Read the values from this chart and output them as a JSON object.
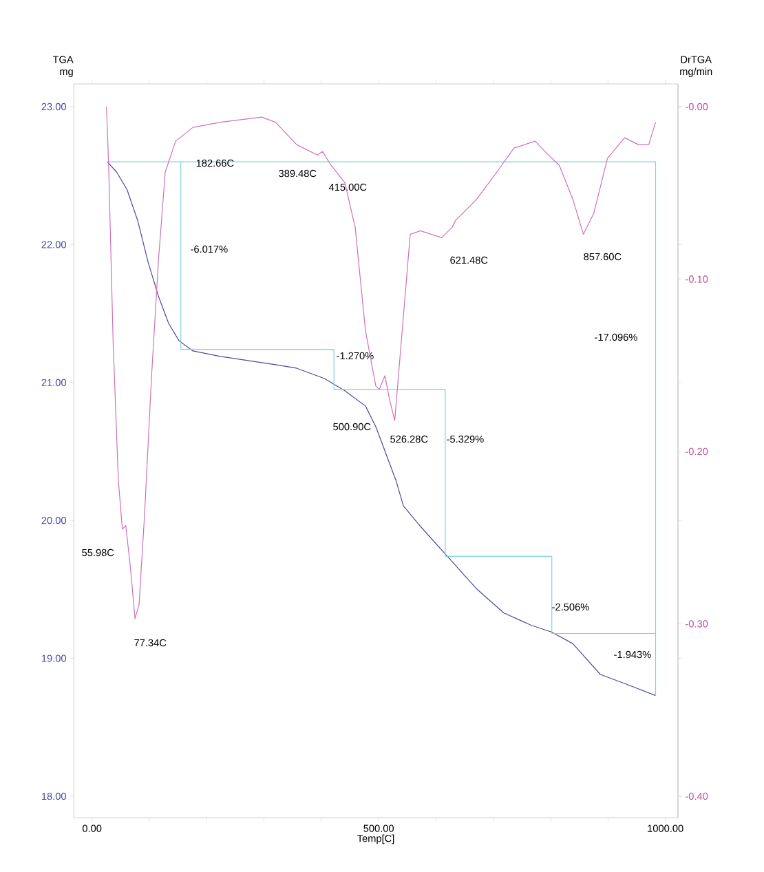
{
  "chart_data": {
    "type": "line",
    "xlabel": "Temp[C]",
    "ylabel": "TGA mg",
    "y2label": "DrTGA mg/min",
    "xlim": [
      -32,
      1022
    ],
    "ylim": [
      17.845,
      23.165
    ],
    "y2lim": [
      -0.4124,
      0.0132
    ],
    "xticks": [
      {
        "value": 0,
        "label": "0.00"
      },
      {
        "value": 100,
        "label": null
      },
      {
        "value": 200,
        "label": null
      },
      {
        "value": 300,
        "label": null
      },
      {
        "value": 400,
        "label": null
      },
      {
        "value": 500,
        "label": "500.00"
      },
      {
        "value": 600,
        "label": null
      },
      {
        "value": 700,
        "label": null
      },
      {
        "value": 800,
        "label": null
      },
      {
        "value": 900,
        "label": null
      },
      {
        "value": 1000,
        "label": "1000.00"
      }
    ],
    "yticks": [
      {
        "value": 18,
        "label": "18.00"
      },
      {
        "value": 19,
        "label": "19.00"
      },
      {
        "value": 20,
        "label": "20.00"
      },
      {
        "value": 21,
        "label": "21.00"
      },
      {
        "value": 22,
        "label": "22.00"
      },
      {
        "value": 23,
        "label": "23.00"
      }
    ],
    "y2ticks": [
      {
        "value": 0,
        "label": "-0.00"
      },
      {
        "value": -0.1,
        "label": "-0.10"
      },
      {
        "value": -0.2,
        "label": "-0.20"
      },
      {
        "value": -0.3,
        "label": "-0.30"
      },
      {
        "value": -0.4,
        "label": "-0.40"
      }
    ],
    "grid": false,
    "series": [
      {
        "color": "#4a4a9a",
        "x": [
          26.5,
          43,
          61,
          79.5,
          97.6,
          115.7,
          133.7,
          151.8,
          176,
          224,
          320,
          356.6,
          404.8,
          441,
          477,
          495,
          513,
          531,
          543,
          573,
          622,
          670,
          718,
          766,
          802,
          838.5,
          886.7,
          934.9,
          983
        ],
        "values": [
          22.6,
          22.526,
          22.4,
          22.177,
          21.877,
          21.628,
          21.428,
          21.303,
          21.229,
          21.189,
          21.129,
          21.104,
          21.03,
          20.94,
          20.83,
          20.68,
          20.48,
          20.28,
          20.106,
          19.956,
          19.73,
          19.507,
          19.33,
          19.24,
          19.19,
          19.107,
          18.883,
          18.808,
          18.73
        ]
      },
      {
        "color": "#d070b8",
        "axis": "y2",
        "x": [
          25.3,
          29,
          37,
          46,
          53,
          59,
          67.5,
          75,
          82,
          91.6,
          103.6,
          115.7,
          127.7,
          145.8,
          176,
          224,
          296,
          320,
          357,
          393,
          402,
          417,
          441,
          459,
          477,
          495,
          501,
          511,
          519,
          528,
          537,
          555,
          573,
          610,
          628,
          634,
          670,
          706,
          736,
          773,
          790,
          815,
          839,
          857,
          875,
          899,
          929,
          953,
          971,
          983
        ],
        "values": [
          0.0,
          -0.034,
          -0.138,
          -0.217,
          -0.245,
          -0.243,
          -0.269,
          -0.297,
          -0.289,
          -0.237,
          -0.158,
          -0.09,
          -0.038,
          -0.02,
          -0.012,
          -0.009,
          -0.006,
          -0.009,
          -0.022,
          -0.028,
          -0.026,
          -0.034,
          -0.044,
          -0.07,
          -0.13,
          -0.162,
          -0.164,
          -0.156,
          -0.17,
          -0.182,
          -0.146,
          -0.074,
          -0.072,
          -0.076,
          -0.07,
          -0.066,
          -0.054,
          -0.038,
          -0.024,
          -0.02,
          -0.026,
          -0.034,
          -0.054,
          -0.074,
          -0.062,
          -0.03,
          -0.018,
          -0.022,
          -0.022,
          -0.009
        ]
      },
      {
        "color": "#80d0e0",
        "x": [
          155,
          155,
          422,
          422,
          616,
          616,
          802,
          802,
          983
        ],
        "values": [
          22.6,
          21.24,
          21.24,
          20.95,
          20.95,
          19.74,
          19.74,
          19.18,
          19.18
        ]
      },
      {
        "color": "#80d0e0",
        "x": [
          26.5,
          983,
          983
        ],
        "values": [
          22.6,
          22.6,
          18.73
        ]
      }
    ],
    "annotations": [
      "182.66C",
      "389.48C",
      "415.00C",
      "621.48C",
      "857.60C",
      "55.98C",
      "77.34C",
      "500.90C",
      "526.28C",
      "-6.017%",
      "-1.270%",
      "-5.329%",
      "-2.506%",
      "-1.943%",
      "-17.096%"
    ]
  }
}
